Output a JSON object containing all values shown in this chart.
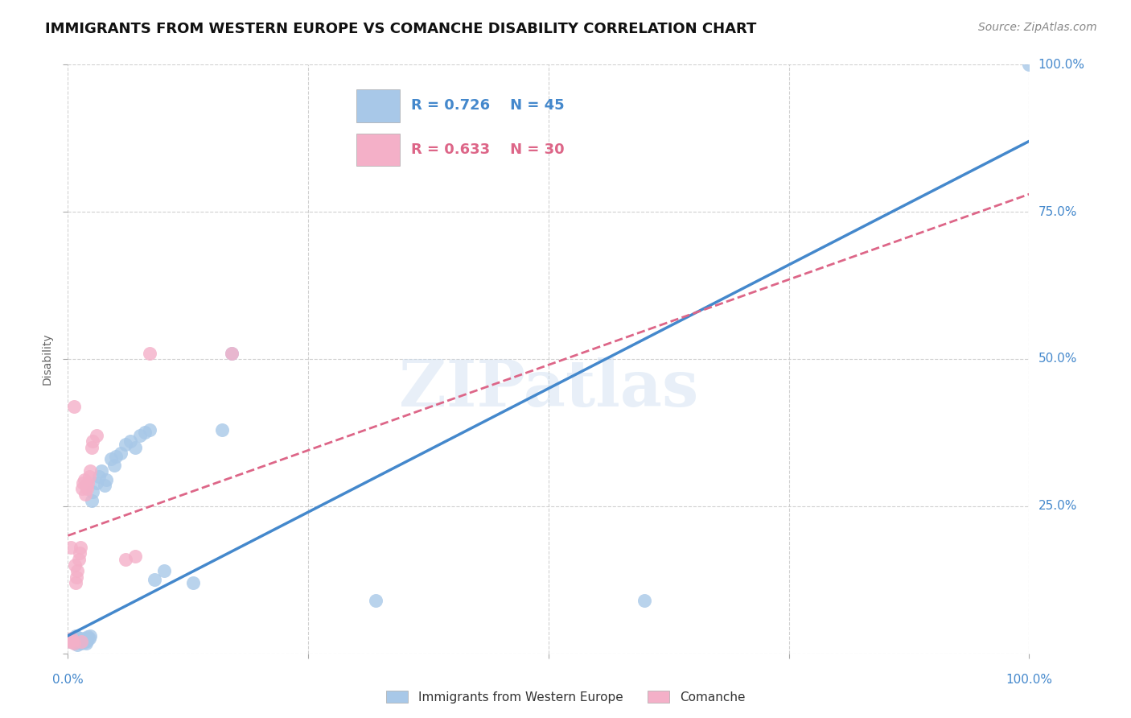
{
  "title": "IMMIGRANTS FROM WESTERN EUROPE VS COMANCHE DISABILITY CORRELATION CHART",
  "source": "Source: ZipAtlas.com",
  "ylabel": "Disability",
  "watermark": "ZIPatlas",
  "blue_r": 0.726,
  "blue_n": 45,
  "pink_r": 0.633,
  "pink_n": 30,
  "blue_color": "#a8c8e8",
  "pink_color": "#f4b0c8",
  "blue_line_color": "#4488cc",
  "pink_line_color": "#dd6688",
  "blue_scatter": [
    [
      0.003,
      0.02
    ],
    [
      0.005,
      0.025
    ],
    [
      0.006,
      0.022
    ],
    [
      0.007,
      0.018
    ],
    [
      0.008,
      0.03
    ],
    [
      0.009,
      0.028
    ],
    [
      0.01,
      0.015
    ],
    [
      0.011,
      0.02
    ],
    [
      0.012,
      0.022
    ],
    [
      0.013,
      0.025
    ],
    [
      0.014,
      0.018
    ],
    [
      0.015,
      0.02
    ],
    [
      0.016,
      0.022
    ],
    [
      0.017,
      0.025
    ],
    [
      0.018,
      0.02
    ],
    [
      0.019,
      0.018
    ],
    [
      0.02,
      0.022
    ],
    [
      0.021,
      0.028
    ],
    [
      0.022,
      0.025
    ],
    [
      0.023,
      0.03
    ],
    [
      0.025,
      0.26
    ],
    [
      0.026,
      0.275
    ],
    [
      0.03,
      0.29
    ],
    [
      0.032,
      0.3
    ],
    [
      0.035,
      0.31
    ],
    [
      0.038,
      0.285
    ],
    [
      0.04,
      0.295
    ],
    [
      0.045,
      0.33
    ],
    [
      0.048,
      0.32
    ],
    [
      0.05,
      0.335
    ],
    [
      0.055,
      0.34
    ],
    [
      0.06,
      0.355
    ],
    [
      0.065,
      0.36
    ],
    [
      0.07,
      0.35
    ],
    [
      0.075,
      0.37
    ],
    [
      0.08,
      0.375
    ],
    [
      0.085,
      0.38
    ],
    [
      0.09,
      0.125
    ],
    [
      0.1,
      0.14
    ],
    [
      0.13,
      0.12
    ],
    [
      0.16,
      0.38
    ],
    [
      0.17,
      0.51
    ],
    [
      0.32,
      0.09
    ],
    [
      0.6,
      0.09
    ],
    [
      1.0,
      1.0
    ]
  ],
  "pink_scatter": [
    [
      0.002,
      0.02
    ],
    [
      0.003,
      0.18
    ],
    [
      0.004,
      0.025
    ],
    [
      0.005,
      0.02
    ],
    [
      0.006,
      0.018
    ],
    [
      0.007,
      0.15
    ],
    [
      0.008,
      0.12
    ],
    [
      0.009,
      0.13
    ],
    [
      0.01,
      0.14
    ],
    [
      0.011,
      0.16
    ],
    [
      0.012,
      0.17
    ],
    [
      0.013,
      0.18
    ],
    [
      0.014,
      0.02
    ],
    [
      0.015,
      0.28
    ],
    [
      0.016,
      0.29
    ],
    [
      0.017,
      0.295
    ],
    [
      0.018,
      0.27
    ],
    [
      0.019,
      0.285
    ],
    [
      0.02,
      0.28
    ],
    [
      0.021,
      0.29
    ],
    [
      0.022,
      0.3
    ],
    [
      0.023,
      0.31
    ],
    [
      0.025,
      0.35
    ],
    [
      0.026,
      0.36
    ],
    [
      0.03,
      0.37
    ],
    [
      0.06,
      0.16
    ],
    [
      0.07,
      0.165
    ],
    [
      0.085,
      0.51
    ],
    [
      0.17,
      0.51
    ],
    [
      0.006,
      0.42
    ]
  ],
  "blue_line_x": [
    0.0,
    1.0
  ],
  "blue_line_y": [
    0.03,
    0.87
  ],
  "pink_line_x": [
    0.0,
    1.0
  ],
  "pink_line_y": [
    0.2,
    0.78
  ],
  "xlim": [
    0.0,
    1.0
  ],
  "ylim": [
    0.0,
    1.0
  ],
  "xticks": [
    0.0,
    0.25,
    0.5,
    0.75,
    1.0
  ],
  "yticks": [
    0.0,
    0.25,
    0.5,
    0.75,
    1.0
  ],
  "right_yticklabels": [
    "",
    "25.0%",
    "50.0%",
    "75.0%",
    "100.0%"
  ],
  "bottom_xticklabels": [
    "0.0%",
    "",
    "",
    "",
    "100.0%"
  ],
  "title_fontsize": 13,
  "label_fontsize": 10,
  "tick_fontsize": 11,
  "source_fontsize": 10,
  "legend_fontsize": 13
}
